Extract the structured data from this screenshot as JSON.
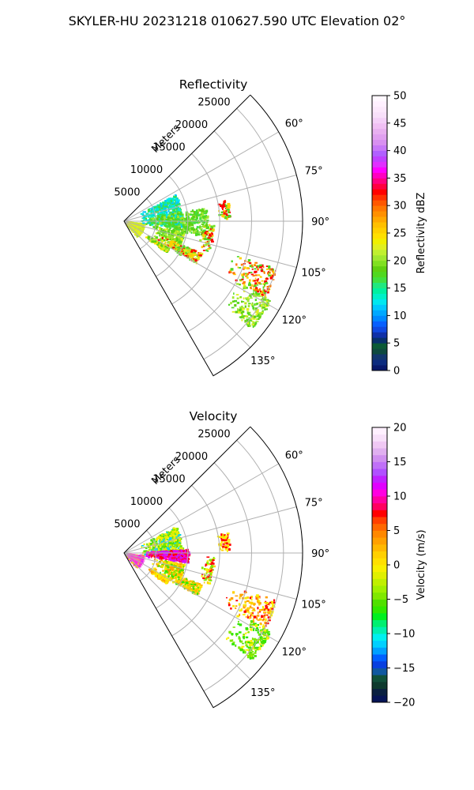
{
  "figure": {
    "title": "SKYLER-HU  20231218  010627.590 UTC Elevation 02°"
  },
  "chart_data": [
    {
      "type": "heatmap",
      "projection": "polar-sector",
      "title": "Reflectivity",
      "range_label": "Meters",
      "azimuth_range_deg": [
        45,
        150
      ],
      "azimuth_ticks": [
        60,
        75,
        90,
        105,
        120,
        135
      ],
      "azimuth_tick_labels": [
        "60°",
        "75°",
        "90°",
        "105°",
        "120°",
        "135°"
      ],
      "range_ticks": [
        5000,
        10000,
        15000,
        20000,
        25000
      ],
      "range_tick_labels": [
        "5000",
        "10000",
        "15000",
        "20000",
        "25000"
      ],
      "range_max_m": 28000,
      "grid": true,
      "colorbar": {
        "label": "Reflectivity dBZ",
        "range": [
          0,
          50
        ],
        "ticks": [
          0,
          5,
          10,
          15,
          20,
          25,
          30,
          35,
          40,
          45,
          50
        ],
        "tick_labels": [
          "0",
          "5",
          "10",
          "15",
          "20",
          "25",
          "30",
          "35",
          "40",
          "45",
          "50"
        ]
      }
    },
    {
      "type": "heatmap",
      "projection": "polar-sector",
      "title": "Velocity",
      "range_label": "Meters",
      "azimuth_range_deg": [
        45,
        150
      ],
      "azimuth_ticks": [
        60,
        75,
        90,
        105,
        120,
        135
      ],
      "azimuth_tick_labels": [
        "60°",
        "75°",
        "90°",
        "105°",
        "120°",
        "135°"
      ],
      "range_ticks": [
        5000,
        10000,
        15000,
        20000,
        25000
      ],
      "range_tick_labels": [
        "5000",
        "10000",
        "15000",
        "20000",
        "25000"
      ],
      "range_max_m": 28000,
      "grid": true,
      "colorbar": {
        "label": "Velocity (m/s)",
        "range": [
          -20,
          20
        ],
        "ticks": [
          -20,
          -15,
          -10,
          -5,
          0,
          5,
          10,
          15,
          20
        ],
        "tick_labels": [
          "−20",
          "−15",
          "−10",
          "−5",
          "0",
          "5",
          "10",
          "15",
          "20"
        ]
      }
    }
  ]
}
